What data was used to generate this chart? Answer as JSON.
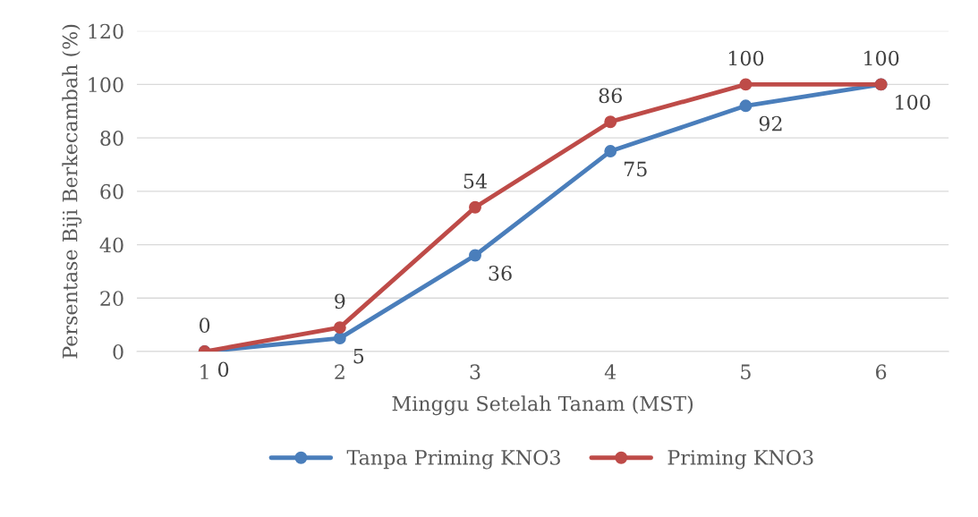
{
  "chart_data": {
    "type": "line",
    "xlabel": "Minggu Setelah Tanam (MST)",
    "ylabel": "Persentase Biji Berkecambah (%)",
    "categories": [
      "1",
      "2",
      "3",
      "4",
      "5",
      "6"
    ],
    "series": [
      {
        "name": "Tanpa Priming KNO3",
        "color": "#4a7ebb",
        "values": [
          0,
          5,
          36,
          75,
          92,
          100
        ]
      },
      {
        "name": "Priming KNO3",
        "color": "#be4b48",
        "values": [
          0,
          9,
          54,
          86,
          100,
          100
        ]
      }
    ],
    "ylim": [
      0,
      120
    ],
    "yticks": [
      0,
      20,
      40,
      60,
      80,
      100,
      120
    ],
    "grid": "y",
    "legend": "bottom",
    "marker": "circle",
    "line_style": "solid",
    "data_labels": true
  }
}
